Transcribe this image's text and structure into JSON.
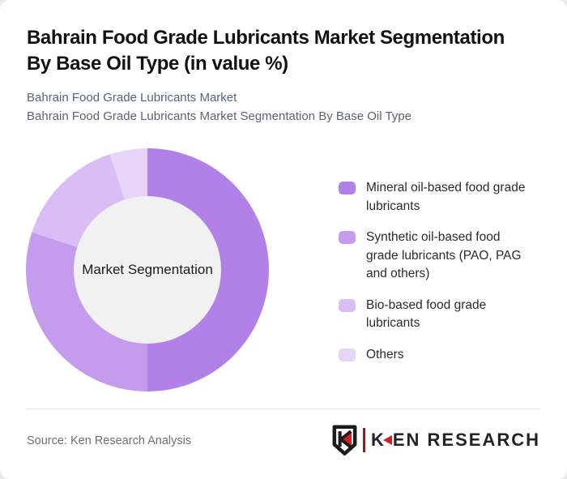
{
  "page": {
    "background": "#e9e9e9",
    "card_background": "#ffffff"
  },
  "header": {
    "title": "Bahrain Food Grade Lubricants Market Segmentation\nBy Base Oil Type (in value %)",
    "subtitles": [
      "Bahrain Food Grade Lubricants Market",
      "Bahrain Food Grade Lubricants Market Segmentation By Base Oil Type"
    ]
  },
  "chart_data": {
    "type": "pie",
    "variant": "donut",
    "title": "Bahrain Food Grade Lubricants Market Segmentation By Base Oil Type (in value %)",
    "unit": "value %",
    "center_label": "Market Segmentation",
    "hole_color": "#f1f1f2",
    "start_angle_deg": 0,
    "direction": "clockwise",
    "legend_position": "right",
    "segments": [
      {
        "label": "Mineral oil-based food grade lubricants",
        "value": 50,
        "color": "#b181e8"
      },
      {
        "label": "Synthetic oil-based food grade lubricants (PAO, PAG and others)",
        "value": 30,
        "color": "#c59bed"
      },
      {
        "label": "Bio-based food grade lubricants",
        "value": 15,
        "color": "#d9bdf4"
      },
      {
        "label": "Others",
        "value": 5,
        "color": "#e6d4f9"
      }
    ]
  },
  "footer": {
    "source": "Source: Ken Research Analysis",
    "logo_badge_letter": "K",
    "logo_k": "K",
    "logo_rest": "EN RESEARCH",
    "logo_red": "#cf2026",
    "logo_dark": "#232328"
  }
}
